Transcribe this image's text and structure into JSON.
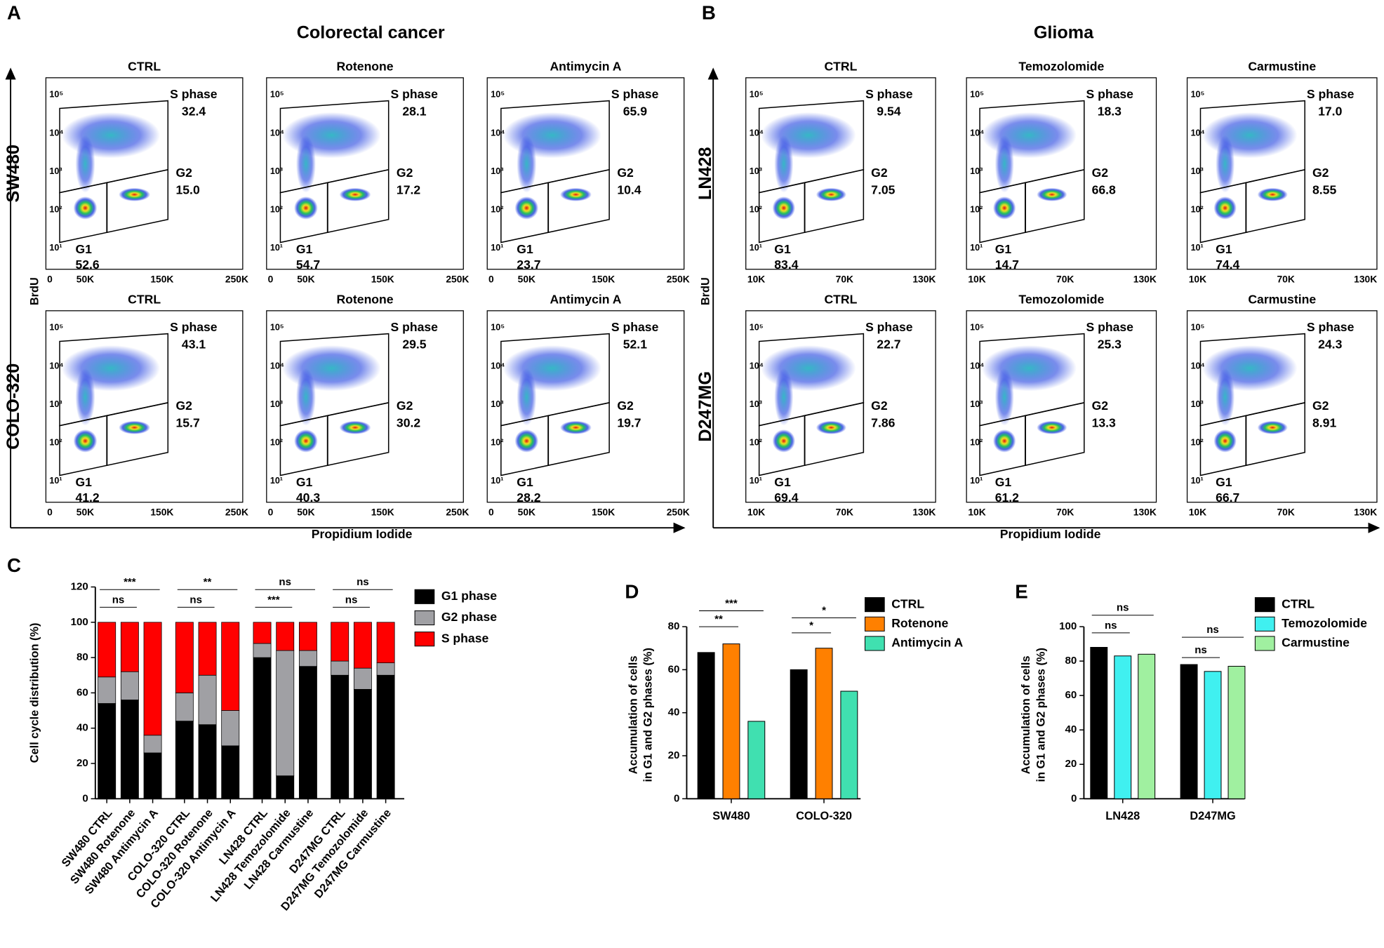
{
  "figure": {
    "panels": [
      {
        "letter": "A",
        "title": "Colorectal cancer",
        "x_label": "Propidium Iodide",
        "y_label": "BrdU",
        "xticks": [
          "0",
          "50K",
          "150K",
          "250K"
        ],
        "yticks": [
          "10¹",
          "10²",
          "10³",
          "10⁴",
          "10⁵"
        ],
        "gates": {
          "s": "S phase",
          "g1": "G1",
          "g2": "G2"
        },
        "rows": [
          {
            "name": "SW480",
            "plots": [
              {
                "title": "CTRL",
                "s": "32.4",
                "g1": "52.6",
                "g2": "15.0"
              },
              {
                "title": "Rotenone",
                "s": "28.1",
                "g1": "54.7",
                "g2": "17.2"
              },
              {
                "title": "Antimycin A",
                "s": "65.9",
                "g1": "23.7",
                "g2": "10.4"
              }
            ]
          },
          {
            "name": "COLO-320",
            "plots": [
              {
                "title": "CTRL",
                "s": "43.1",
                "g1": "41.2",
                "g2": "15.7"
              },
              {
                "title": "Rotenone",
                "s": "29.5",
                "g1": "40.3",
                "g2": "30.2"
              },
              {
                "title": "Antimycin A",
                "s": "52.1",
                "g1": "28.2",
                "g2": "19.7"
              }
            ]
          }
        ]
      },
      {
        "letter": "B",
        "title": "Glioma",
        "x_label": "Propidium Iodide",
        "y_label": "BrdU",
        "xticks": [
          "10K",
          "70K",
          "130K"
        ],
        "yticks": [
          "10¹",
          "10²",
          "10³",
          "10⁴",
          "10⁵"
        ],
        "gates": {
          "s": "S phase",
          "g1": "G1",
          "g2": "G2"
        },
        "rows": [
          {
            "name": "LN428",
            "plots": [
              {
                "title": "CTRL",
                "s": "9.54",
                "g1": "83.4",
                "g2": "7.05"
              },
              {
                "title": "Temozolomide",
                "s": "18.3",
                "g1": "14.7",
                "g2": "66.8"
              },
              {
                "title": "Carmustine",
                "s": "17.0",
                "g1": "74.4",
                "g2": "8.55"
              }
            ]
          },
          {
            "name": "D247MG",
            "plots": [
              {
                "title": "CTRL",
                "s": "22.7",
                "g1": "69.4",
                "g2": "7.86"
              },
              {
                "title": "Temozolomide",
                "s": "25.3",
                "g1": "61.2",
                "g2": "13.3"
              },
              {
                "title": "Carmustine",
                "s": "24.3",
                "g1": "66.7",
                "g2": "8.91"
              }
            ]
          }
        ]
      }
    ]
  },
  "chart_data": [
    {
      "panel": "C",
      "type": "stacked_bar",
      "y_label": "Cell cycle distribution (%)",
      "categories": [
        "SW480 CTRL",
        "SW480 Rotenone",
        "SW480 Antimycin A",
        "COLO-320 CTRL",
        "COLO-320 Rotenone",
        "COLO-320 Antimycin A",
        "LN428 CTRL",
        "LN428 Temozolomide",
        "LN428 Carmustine",
        "D247MG CTRL",
        "D247MG Temozolomide",
        "D247MG Carmustine"
      ],
      "series": [
        {
          "name": "G1 phase",
          "color": "#000000",
          "values": [
            54,
            56,
            26,
            44,
            42,
            30,
            80,
            13,
            75,
            70,
            62,
            70
          ]
        },
        {
          "name": "G2 phase",
          "color": "#a0a0a4",
          "values": [
            15,
            16,
            10,
            16,
            28,
            20,
            8,
            71,
            9,
            8,
            12,
            7
          ]
        },
        {
          "name": "S phase",
          "color": "#ff0000",
          "values": [
            31,
            28,
            64,
            40,
            30,
            50,
            12,
            16,
            16,
            22,
            26,
            23
          ]
        }
      ],
      "ylim": [
        0,
        120
      ],
      "yticks": [
        0,
        20,
        40,
        60,
        80,
        100,
        120
      ],
      "annotations": [
        "***",
        "ns",
        "**",
        "ns",
        "ns",
        "***",
        "ns",
        "ns"
      ]
    },
    {
      "panel": "D",
      "type": "grouped_bar",
      "y_label": [
        "Accumulation of cells",
        "in G1 and G2 phases (%)"
      ],
      "categories": [
        "SW480",
        "COLO-320"
      ],
      "series": [
        {
          "name": "CTRL",
          "color": "#000000",
          "values": [
            68,
            60
          ]
        },
        {
          "name": "Rotenone",
          "color": "#ff8000",
          "values": [
            72,
            70
          ]
        },
        {
          "name": "Antimycin A",
          "color": "#40e0b0",
          "values": [
            36,
            50
          ]
        }
      ],
      "ylim": [
        0,
        80
      ],
      "yticks": [
        0,
        20,
        40,
        60,
        80
      ],
      "annotations": [
        "***",
        "**",
        "*",
        "*"
      ]
    },
    {
      "panel": "E",
      "type": "grouped_bar",
      "y_label": [
        "Accumulation of cells",
        "in G1 and G2 phases (%)"
      ],
      "categories": [
        "LN428",
        "D247MG"
      ],
      "series": [
        {
          "name": "CTRL",
          "color": "#000000",
          "values": [
            88,
            78
          ]
        },
        {
          "name": "Temozolomide",
          "color": "#40f0f0",
          "values": [
            83,
            74
          ]
        },
        {
          "name": "Carmustine",
          "color": "#a0f0a0",
          "values": [
            84,
            77
          ]
        }
      ],
      "ylim": [
        0,
        100
      ],
      "yticks": [
        0,
        20,
        40,
        60,
        80,
        100
      ],
      "annotations": [
        "ns",
        "ns",
        "ns",
        "ns"
      ]
    }
  ]
}
